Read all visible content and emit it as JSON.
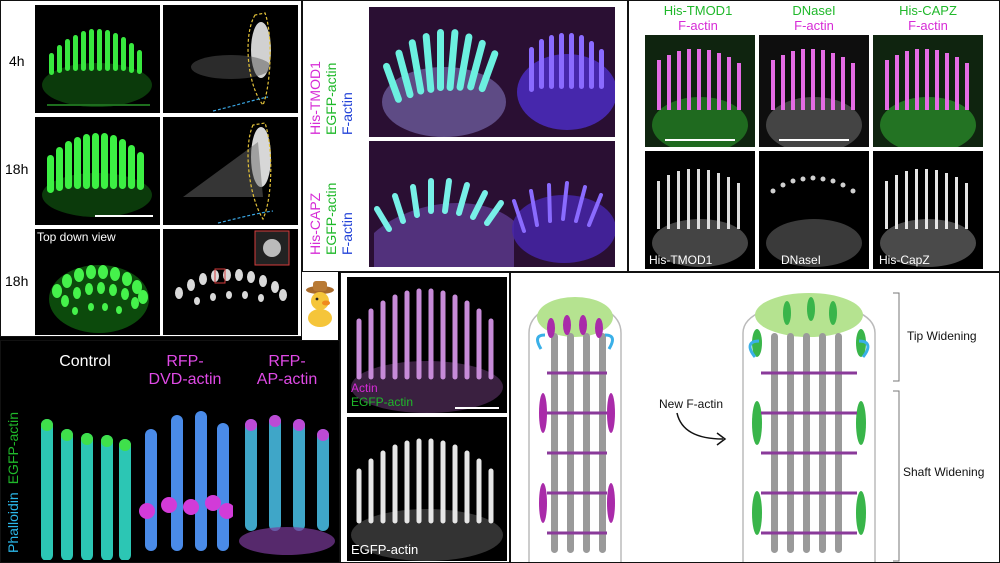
{
  "panel_a": {
    "row_labels": [
      "4h",
      "18h",
      "18h"
    ],
    "top_down_label": "Top down view"
  },
  "panel_b": {
    "rows": [
      {
        "lines": [
          "His-TMOD1",
          "EGFP-actin",
          "F-actin"
        ]
      },
      {
        "lines": [
          "His-CAPZ",
          "EGFP-actin",
          "F-actin"
        ]
      }
    ]
  },
  "panel_c": {
    "columns": [
      {
        "top": "His-TMOD1",
        "bottom": "F-actin",
        "gray_label": "His-TMOD1"
      },
      {
        "top": "DNaseI",
        "bottom": "F-actin",
        "gray_label": "DNaseI"
      },
      {
        "top": "His-CAPZ",
        "bottom": "F-actin",
        "gray_label": "His-CapZ"
      }
    ]
  },
  "panel_d": {
    "side_labels": [
      "Phalloidin",
      "EGFP-actin"
    ],
    "columns": [
      {
        "lines": [
          "Control"
        ]
      },
      {
        "lines": [
          "RFP-",
          "DVD-actin"
        ]
      },
      {
        "lines": [
          "RFP-",
          "AP-actin"
        ]
      }
    ]
  },
  "panel_e": {
    "labels": [
      "Actin",
      "EGFP-actin"
    ],
    "gray_label": "EGFP-actin"
  },
  "panel_f": {
    "arrow_label": "New F-actin",
    "tip_label": "Tip Widening",
    "shaft_label": "Shaft Widening"
  },
  "colors": {
    "green": "#2fd83a",
    "magenta": "#d62bd6",
    "blue": "#3f6cff",
    "cyan": "#2bb7e8"
  }
}
